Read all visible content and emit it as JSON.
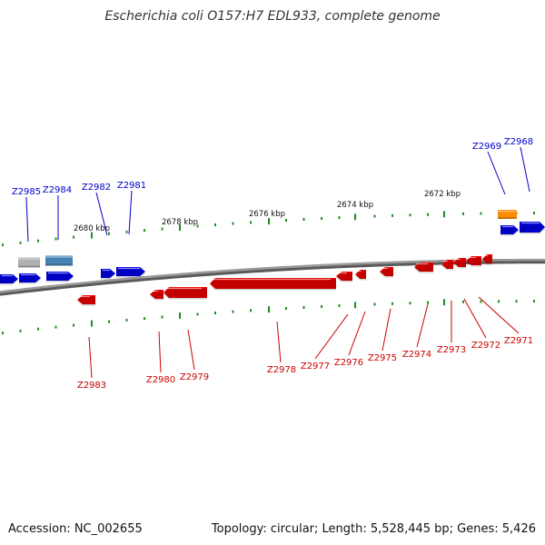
{
  "title": "Escherichia coli O157:H7 EDL933, complete genome",
  "footer": {
    "accession": "Accession: NC_002655",
    "summary": "Topology: circular; Length: 5,528,445 bp; Genes: 5,426"
  },
  "colors": {
    "forward_gene": "#0000ee",
    "reverse_gene": "#ee0000",
    "forward_label": "#0000cc",
    "reverse_label": "#cc0000",
    "tick": "#228b22",
    "backbone": "#808080",
    "grey_feature": "#b0b0b0",
    "steelblue_feature": "#4682b4",
    "orange_feature": "#ff8c00"
  },
  "scale_labels": [
    "2680 kbp",
    "2678 kbp",
    "2676 kbp",
    "2674 kbp",
    "2672 kbp"
  ],
  "forward_genes": [
    "Z2985",
    "Z2984",
    "Z2982",
    "Z2981",
    "Z2969",
    "Z2968"
  ],
  "reverse_genes": [
    "Z2983",
    "Z2980",
    "Z2979",
    "Z2978",
    "Z2977",
    "Z2976",
    "Z2975",
    "Z2974",
    "Z2973",
    "Z2972",
    "Z2971"
  ]
}
